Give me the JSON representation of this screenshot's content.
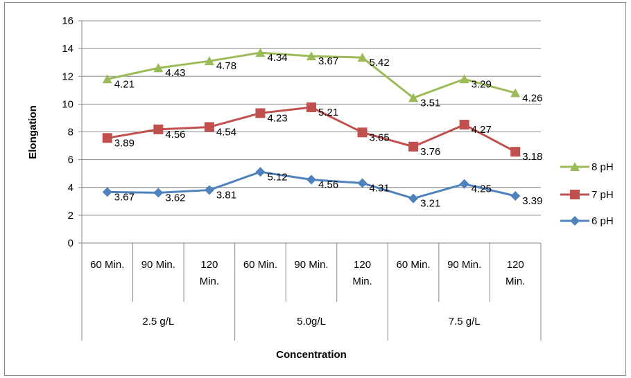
{
  "chart_data": {
    "type": "line",
    "title": "",
    "xlabel": "Concentration",
    "ylabel": "Elongation",
    "ylim": [
      0,
      16
    ],
    "yticks": [
      "0",
      "2",
      "4",
      "6",
      "8",
      "10",
      "12",
      "14",
      "16"
    ],
    "grid": "horizontal major gridlines",
    "legend_position": "right",
    "groups": [
      "2.5 g/L",
      "5.0g/L",
      "7.5 g/L"
    ],
    "categories": [
      "60 Min.",
      "90 Min.",
      "120 Min.",
      "60 Min.",
      "90 Min.",
      "120 Min.",
      "60 Min.",
      "90 Min.",
      "120 Min."
    ],
    "category_lines": [
      [
        "60 Min."
      ],
      [
        "90 Min."
      ],
      [
        "120",
        "Min."
      ],
      [
        "60 Min."
      ],
      [
        "90 Min."
      ],
      [
        "120",
        "Min."
      ],
      [
        "60 Min."
      ],
      [
        "90 Min."
      ],
      [
        "120",
        "Min."
      ]
    ],
    "series": [
      {
        "name": "8 pH",
        "color": "#9BBB59",
        "marker": "triangle",
        "values": [
          11.8,
          12.6,
          13.1,
          13.7,
          13.45,
          13.35,
          10.45,
          11.8,
          10.8
        ],
        "labels": [
          "4.21",
          "4.43",
          "4.78",
          "4.34",
          "3.67",
          "5.42",
          "3.51",
          "3.29",
          "4.26"
        ]
      },
      {
        "name": "7 pH",
        "color": "#C0504D",
        "marker": "square",
        "values": [
          7.56,
          8.18,
          8.35,
          9.35,
          9.77,
          7.96,
          6.94,
          8.52,
          6.57
        ],
        "labels": [
          "3.89",
          "4.56",
          "4.54",
          "4.23",
          "5.21",
          "3.65",
          "3.76",
          "4.27",
          "3.18"
        ]
      },
      {
        "name": "6 pH",
        "color": "#4F81BD",
        "marker": "diamond",
        "values": [
          3.67,
          3.62,
          3.81,
          5.12,
          4.56,
          4.31,
          3.21,
          4.25,
          3.39
        ],
        "labels": [
          "3.67",
          "3.62",
          "3.81",
          "5.12",
          "4.56",
          "4.31",
          "3.21",
          "4.25",
          "3.39"
        ]
      }
    ]
  }
}
